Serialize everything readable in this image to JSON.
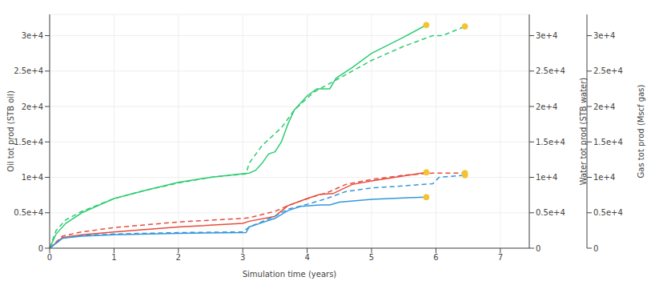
{
  "chart_data": {
    "type": "line",
    "xlabel": "Simulation time (years)",
    "ylabel": "Oil tot prod (STB oil)",
    "y2label": "Water tot prod (STB water)",
    "y3label": "Gas tot prod (Mscf gas)",
    "xlim": [
      0,
      7.45
    ],
    "xticks": [
      0,
      1,
      2,
      3,
      4,
      5,
      6,
      7
    ],
    "ylim": [
      0,
      33000
    ],
    "yticks": [
      0,
      {
        "value": 5000,
        "label": "0.5e+4"
      },
      {
        "value": 10000,
        "label": "1e+4"
      },
      {
        "value": 15000,
        "label": "1.5e+4"
      },
      {
        "value": 20000,
        "label": "2e+4"
      },
      {
        "value": 25000,
        "label": "2.5e+4"
      },
      {
        "value": 30000,
        "label": "3e+4"
      }
    ],
    "y2lim": [
      0,
      33000
    ],
    "y2ticks": [
      0,
      {
        "value": 5000,
        "label": "0.5e+4"
      },
      {
        "value": 10000,
        "label": "1e+4"
      },
      {
        "value": 15000,
        "label": "1.5e+4"
      },
      {
        "value": 20000,
        "label": "2e+4"
      },
      {
        "value": 25000,
        "label": "2.5e+4"
      },
      {
        "value": 30000,
        "label": "3e+4"
      }
    ],
    "y3lim": [
      0,
      33000
    ],
    "y3ticks": [
      0,
      {
        "value": 5000,
        "label": "0.5e+4"
      },
      {
        "value": 10000,
        "label": "1e+4"
      },
      {
        "value": 15000,
        "label": "1.5e+4"
      },
      {
        "value": 20000,
        "label": "2e+4"
      },
      {
        "value": 25000,
        "label": "2.5e+4"
      },
      {
        "value": 30000,
        "label": "3e+4"
      }
    ],
    "grid": true,
    "series": [
      {
        "color": "#2ecc71",
        "line_style": "solid",
        "marker": "end",
        "axis": "y2",
        "x": [
          0,
          0.1,
          0.25,
          0.5,
          1,
          1.5,
          2,
          2.5,
          3,
          3.1,
          3.2,
          3.3,
          3.4,
          3.5,
          3.6,
          3.7,
          3.8,
          4.0,
          4.15,
          4.35,
          4.45,
          4.7,
          5.0,
          5.5,
          5.85
        ],
        "values": [
          0,
          2000,
          3500,
          5000,
          7000,
          8200,
          9300,
          10000,
          10500,
          10600,
          11000,
          12000,
          13300,
          13600,
          15000,
          17500,
          19500,
          21500,
          22500,
          22500,
          24000,
          25500,
          27500,
          29800,
          31500
        ]
      },
      {
        "color": "#2ecc71",
        "line_style": "dashed",
        "marker": "end",
        "axis": "y2",
        "x": [
          0,
          0.1,
          0.25,
          0.5,
          1,
          1.5,
          2,
          2.5,
          3.05,
          3.1,
          3.3,
          3.6,
          3.8,
          4.1,
          4.2,
          4.5,
          5.0,
          5.5,
          5.95,
          6.1,
          6.45
        ],
        "values": [
          0,
          2500,
          4000,
          5200,
          7000,
          8200,
          9200,
          10000,
          10500,
          12000,
          14500,
          17000,
          19500,
          22000,
          22500,
          24000,
          26500,
          28500,
          30000,
          30000,
          31300
        ]
      },
      {
        "color": "#e74c3c",
        "line_style": "solid",
        "marker": "end",
        "x": [
          0,
          0.2,
          0.5,
          1,
          2,
          3,
          3.1,
          3.5,
          3.7,
          4.0,
          4.2,
          4.4,
          4.7,
          5.0,
          5.5,
          5.85
        ],
        "values": [
          0,
          1500,
          1900,
          2300,
          3000,
          3500,
          3800,
          4500,
          6000,
          7000,
          7600,
          7700,
          9000,
          9500,
          10200,
          10700
        ]
      },
      {
        "color": "#e74c3c",
        "line_style": "dashed",
        "marker": "end",
        "x": [
          0,
          0.2,
          0.5,
          1,
          2,
          3,
          3.1,
          3.5,
          3.7,
          4.1,
          4.3,
          4.6,
          5.0,
          5.5,
          5.95,
          6.3,
          6.45
        ],
        "values": [
          0,
          1700,
          2300,
          2900,
          3700,
          4200,
          4300,
          5200,
          6000,
          7300,
          7800,
          9000,
          9700,
          10300,
          10600,
          10600,
          10600
        ]
      },
      {
        "color": "#3498db",
        "line_style": "solid",
        "marker": "end",
        "axis": "y3",
        "x": [
          0,
          0.2,
          0.5,
          1,
          2,
          3.05,
          3.1,
          3.3,
          3.5,
          3.7,
          3.9,
          4.2,
          4.35,
          4.5,
          5.0,
          5.5,
          5.85
        ],
        "values": [
          0,
          1400,
          1700,
          1900,
          2100,
          2200,
          3000,
          3600,
          4200,
          5300,
          5900,
          6100,
          6100,
          6500,
          6900,
          7100,
          7200
        ]
      },
      {
        "color": "#3498db",
        "line_style": "dashed",
        "marker": "end",
        "axis": "y3",
        "x": [
          0,
          0.2,
          0.5,
          1,
          2,
          3,
          3.1,
          3.5,
          3.7,
          4.0,
          4.3,
          4.6,
          5.0,
          5.5,
          5.95,
          6.05,
          6.45
        ],
        "values": [
          0,
          1400,
          1800,
          2000,
          2200,
          2300,
          3000,
          4500,
          5500,
          6200,
          7000,
          8000,
          8500,
          8800,
          9100,
          10000,
          10300
        ]
      }
    ]
  }
}
